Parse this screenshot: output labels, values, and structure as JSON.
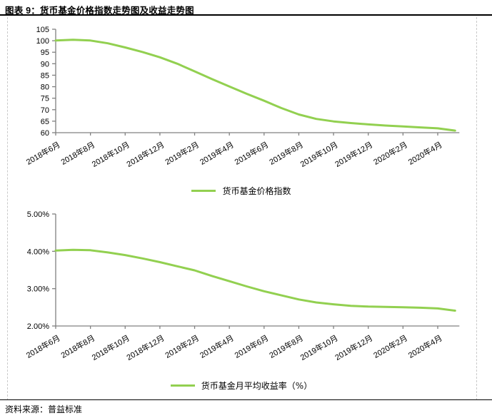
{
  "page": {
    "title": "图表 9：货币基金价格指数走势图及收益走势图",
    "source": "资料来源：普益标准"
  },
  "colors": {
    "series_green": "#92D050",
    "axis": "#808080",
    "frame_dash": "#C9C9C9",
    "text": "#000000"
  },
  "chart_data": [
    {
      "type": "line",
      "name": "money-fund-price-index",
      "legend": "货币基金价格指数",
      "legend_position": "bottom",
      "grid": false,
      "xlabel": "",
      "ylabel": "",
      "ylim": [
        60,
        105
      ],
      "ytick_step": 5,
      "yticklabels": [
        "60",
        "65",
        "70",
        "75",
        "80",
        "85",
        "90",
        "95",
        "100",
        "105"
      ],
      "xtick_every": 2,
      "xticklabels": [
        "2018年6月",
        "2018年8月",
        "2018年10月",
        "2018年12月",
        "2019年2月",
        "2019年4月",
        "2019年6月",
        "2019年8月",
        "2019年10月",
        "2019年12月",
        "2020年2月",
        "2020年4月"
      ],
      "categories": [
        "2018年6月",
        "2018年7月",
        "2018年8月",
        "2018年9月",
        "2018年10月",
        "2018年11月",
        "2018年12月",
        "2019年1月",
        "2019年2月",
        "2019年3月",
        "2019年4月",
        "2019年5月",
        "2019年6月",
        "2019年7月",
        "2019年8月",
        "2019年9月",
        "2019年10月",
        "2019年11月",
        "2019年12月",
        "2020年1月",
        "2020年2月",
        "2020年3月",
        "2020年4月",
        "2020年5月"
      ],
      "values": [
        100.1,
        100.4,
        100.1,
        98.9,
        97.1,
        95.1,
        92.8,
        90.0,
        86.7,
        83.3,
        80.1,
        76.9,
        73.9,
        70.7,
        67.9,
        66.0,
        64.9,
        64.2,
        63.6,
        63.1,
        62.7,
        62.3,
        61.9,
        60.9
      ]
    },
    {
      "type": "line",
      "name": "money-fund-monthly-average-yield",
      "legend": "货币基金月平均收益率（%）",
      "legend_position": "bottom",
      "grid": false,
      "xlabel": "",
      "ylabel": "",
      "ylim": [
        2,
        5
      ],
      "ytick_step": 1,
      "yticklabels": [
        "2.00%",
        "3.00%",
        "4.00%",
        "5.00%"
      ],
      "xtick_every": 2,
      "xticklabels": [
        "2018年6月",
        "2018年8月",
        "2018年10月",
        "2018年12月",
        "2019年2月",
        "2019年4月",
        "2019年6月",
        "2019年8月",
        "2019年10月",
        "2019年12月",
        "2020年2月",
        "2020年4月"
      ],
      "categories": [
        "2018年6月",
        "2018年7月",
        "2018年8月",
        "2018年9月",
        "2018年10月",
        "2018年11月",
        "2018年12月",
        "2019年1月",
        "2019年2月",
        "2019年3月",
        "2019年4月",
        "2019年5月",
        "2019年6月",
        "2019年7月",
        "2019年8月",
        "2019年9月",
        "2019年10月",
        "2019年11月",
        "2019年12月",
        "2020年1月",
        "2020年2月",
        "2020年3月",
        "2020年4月",
        "2020年5月"
      ],
      "values": [
        4.02,
        4.04,
        4.03,
        3.97,
        3.9,
        3.81,
        3.71,
        3.6,
        3.49,
        3.34,
        3.2,
        3.06,
        2.93,
        2.82,
        2.71,
        2.63,
        2.58,
        2.54,
        2.52,
        2.51,
        2.5,
        2.49,
        2.47,
        2.41
      ]
    }
  ]
}
